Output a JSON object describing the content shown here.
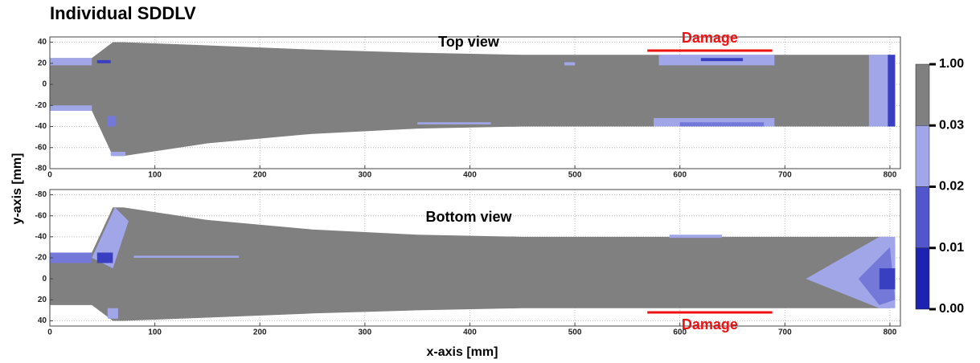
{
  "chart_data": {
    "type": "contour",
    "title": "Individual SDDLV",
    "xlabel": "x-axis [mm]",
    "ylabel": "y-axis [mm]",
    "xlim": [
      0,
      810
    ],
    "xticks": [
      0,
      100,
      200,
      300,
      400,
      500,
      600,
      700,
      800
    ],
    "grid": true,
    "specimen_color": "#808080",
    "panels": [
      {
        "label": "Top view",
        "ylim": [
          -80,
          45
        ],
        "yreverse": false,
        "yticks": [
          40,
          20,
          0,
          -20,
          -40,
          -60,
          -80
        ],
        "outline": {
          "x": [
            0,
            40,
            60,
            70,
            150,
            250,
            350,
            450,
            800,
            805,
            805,
            800,
            450,
            350,
            250,
            150,
            70,
            60,
            40,
            0
          ],
          "y": [
            25,
            25,
            40,
            40,
            37,
            33,
            30,
            28,
            28,
            20,
            -35,
            -40,
            -40,
            -42,
            -47,
            -56,
            -68,
            -68,
            -25,
            -25
          ]
        },
        "damage": {
          "label": "Damage",
          "x": [
            569,
            688
          ],
          "color": "#ee1111"
        },
        "patches": [
          {
            "color": "#a0a6e8",
            "x": [
              0,
              40,
              40,
              0
            ],
            "y": [
              25,
              25,
              18,
              18
            ]
          },
          {
            "color": "#a0a6e8",
            "x": [
              0,
              40,
              40,
              0
            ],
            "y": [
              -20,
              -20,
              -25,
              -25
            ]
          },
          {
            "color": "#3a3ec0",
            "x": [
              45,
              58,
              58,
              45
            ],
            "y": [
              23,
              23,
              20,
              20
            ]
          },
          {
            "color": "#7478d8",
            "x": [
              55,
              63,
              63,
              55
            ],
            "y": [
              -30,
              -30,
              -40,
              -40
            ]
          },
          {
            "color": "#a0a6e8",
            "x": [
              58,
              72,
              72,
              58
            ],
            "y": [
              -64,
              -64,
              -68,
              -68
            ]
          },
          {
            "color": "#a0a6e8",
            "x": [
              490,
              500,
              500,
              490
            ],
            "y": [
              21,
              21,
              18,
              18
            ]
          },
          {
            "color": "#a0a6e8",
            "x": [
              350,
              420,
              420,
              350
            ],
            "y": [
              -36,
              -36,
              -38,
              -38
            ]
          },
          {
            "color": "#a0a6e8",
            "x": [
              580,
              690,
              690,
              580
            ],
            "y": [
              28,
              28,
              18,
              18
            ]
          },
          {
            "color": "#3a3ec0",
            "x": [
              620,
              660,
              660,
              620
            ],
            "y": [
              25,
              25,
              22,
              22
            ]
          },
          {
            "color": "#a0a6e8",
            "x": [
              575,
              690,
              690,
              575
            ],
            "y": [
              -32,
              -32,
              -40,
              -40
            ]
          },
          {
            "color": "#7478d8",
            "x": [
              600,
              680,
              680,
              600
            ],
            "y": [
              -36,
              -36,
              -40,
              -40
            ]
          },
          {
            "color": "#a0a6e8",
            "x": [
              780,
              805,
              805,
              780
            ],
            "y": [
              28,
              28,
              -40,
              -40
            ]
          },
          {
            "color": "#3a3ec0",
            "x": [
              798,
              805,
              805,
              798
            ],
            "y": [
              28,
              28,
              -40,
              -40
            ]
          }
        ]
      },
      {
        "label": "Bottom view",
        "ylim": [
          -85,
          45
        ],
        "yreverse": true,
        "yticks": [
          -80,
          -60,
          -40,
          -20,
          0,
          20,
          40
        ],
        "outline": {
          "x": [
            0,
            40,
            60,
            70,
            150,
            250,
            350,
            450,
            800,
            805,
            805,
            800,
            450,
            350,
            250,
            150,
            70,
            60,
            40,
            0
          ],
          "y": [
            25,
            25,
            40,
            40,
            37,
            33,
            30,
            28,
            28,
            20,
            -35,
            -40,
            -40,
            -42,
            -47,
            -56,
            -68,
            -68,
            -25,
            -25
          ]
        },
        "damage": {
          "label": "Damage",
          "x": [
            569,
            688
          ],
          "color": "#ee1111"
        },
        "patches": [
          {
            "color": "#7478d8",
            "x": [
              0,
              40,
              40,
              0
            ],
            "y": [
              -15,
              -15,
              -25,
              -25
            ]
          },
          {
            "color": "#a0a6e8",
            "x": [
              40,
              62,
              75,
              60
            ],
            "y": [
              -20,
              -68,
              -55,
              -10
            ]
          },
          {
            "color": "#3a3ec0",
            "x": [
              45,
              60,
              60,
              45
            ],
            "y": [
              -15,
              -15,
              -25,
              -25
            ]
          },
          {
            "color": "#a0a6e8",
            "x": [
              80,
              180,
              180,
              80
            ],
            "y": [
              -20,
              -20,
              -22,
              -22
            ]
          },
          {
            "color": "#a0a6e8",
            "x": [
              55,
              65,
              65,
              55
            ],
            "y": [
              38,
              38,
              28,
              28
            ]
          },
          {
            "color": "#a0a6e8",
            "x": [
              590,
              640,
              640,
              590
            ],
            "y": [
              -39,
              -39,
              -42,
              -42
            ]
          },
          {
            "color": "#a0a6e8",
            "x": [
              720,
              790,
              805,
              805,
              790
            ],
            "y": [
              0,
              -40,
              -40,
              28,
              28
            ]
          },
          {
            "color": "#7478d8",
            "x": [
              770,
              800,
              805,
              790
            ],
            "y": [
              0,
              -30,
              20,
              25
            ]
          },
          {
            "color": "#3a3ec0",
            "x": [
              790,
              805,
              805,
              790
            ],
            "y": [
              -10,
              -10,
              10,
              10
            ]
          }
        ]
      }
    ],
    "colorbar": {
      "colors": [
        "#1e22b0",
        "#5256cc",
        "#a0a6e8",
        "#808080"
      ],
      "ticks": [
        {
          "value": 0,
          "label": "0.00"
        },
        {
          "value": 0.01,
          "label": "0.01"
        },
        {
          "value": 0.02,
          "label": "0.02"
        },
        {
          "value": 0.03,
          "label": "0.03"
        },
        {
          "value": 1,
          "label": "1.00"
        }
      ]
    }
  }
}
